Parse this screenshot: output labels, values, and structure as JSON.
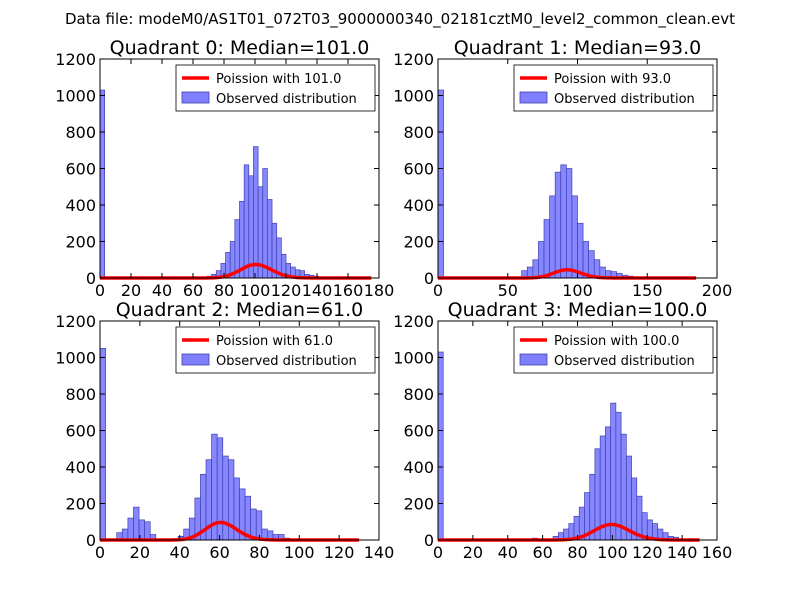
{
  "figure_title": "Data file: modeM0/AS1T01_072T03_9000000340_02181cztM0_level2_common_clean.evt",
  "colors": {
    "histogram_fill": "#8080ff",
    "histogram_edge": "#4040b0",
    "poisson_line": "#ff0000"
  },
  "chart_data": [
    {
      "type": "bar",
      "title": "Quadrant 0: Median=101.0",
      "xlim": [
        0,
        180
      ],
      "ylim": [
        0,
        1200
      ],
      "xticks": [
        0,
        20,
        40,
        60,
        80,
        100,
        120,
        140,
        160,
        180
      ],
      "xtick_labels": [
        "0",
        "20",
        "40",
        "60",
        "80",
        "100",
        "120",
        "140",
        "160",
        "180"
      ],
      "yticks": [
        0,
        200,
        400,
        600,
        800,
        1000,
        1200
      ],
      "legend": [
        "Poission with 101.0",
        "Observed distribution"
      ],
      "legend_position": "top-right",
      "series": [
        {
          "name": "Observed distribution",
          "kind": "histogram",
          "bin_width": 3,
          "x": [
            0,
            66,
            69,
            72,
            75,
            78,
            81,
            84,
            87,
            90,
            93,
            96,
            99,
            102,
            105,
            108,
            111,
            114,
            117,
            120,
            123,
            126,
            129,
            132,
            135,
            138,
            141
          ],
          "values": [
            1030,
            5,
            10,
            20,
            40,
            80,
            140,
            200,
            320,
            420,
            620,
            560,
            720,
            500,
            600,
            430,
            300,
            220,
            130,
            80,
            60,
            45,
            40,
            20,
            15,
            10,
            5
          ]
        },
        {
          "name": "Poission with 101.0",
          "kind": "line",
          "mean": 101.0,
          "x_range": [
            0,
            175
          ]
        }
      ]
    },
    {
      "type": "bar",
      "title": "Quadrant 1: Median=93.0",
      "xlim": [
        0,
        200
      ],
      "ylim": [
        0,
        1200
      ],
      "xticks": [
        0,
        50,
        100,
        150,
        200
      ],
      "xtick_labels": [
        "0",
        "50",
        "100",
        "150",
        "200"
      ],
      "yticks": [
        0,
        200,
        400,
        600,
        800,
        1000,
        1200
      ],
      "legend": [
        "Poission with 93.0",
        "Observed distribution"
      ],
      "legend_position": "top-right",
      "series": [
        {
          "name": "Observed distribution",
          "kind": "histogram",
          "bin_width": 4,
          "x": [
            0,
            60,
            64,
            68,
            72,
            76,
            80,
            84,
            88,
            92,
            96,
            100,
            104,
            108,
            112,
            116,
            120,
            124,
            128,
            132,
            136
          ],
          "values": [
            1030,
            40,
            60,
            100,
            200,
            320,
            450,
            580,
            620,
            600,
            450,
            300,
            200,
            150,
            100,
            60,
            40,
            35,
            25,
            15,
            10
          ]
        },
        {
          "name": "Poission with 93.0",
          "kind": "line",
          "mean": 93.0,
          "x_range": [
            0,
            185
          ]
        }
      ]
    },
    {
      "type": "bar",
      "title": "Quadrant 2: Median=61.0",
      "xlim": [
        0,
        140
      ],
      "ylim": [
        0,
        1200
      ],
      "xticks": [
        0,
        20,
        40,
        60,
        80,
        100,
        120,
        140
      ],
      "xtick_labels": [
        "0",
        "20",
        "40",
        "60",
        "80",
        "100",
        "120",
        "140"
      ],
      "yticks": [
        0,
        200,
        400,
        600,
        800,
        1000,
        1200
      ],
      "legend": [
        "Poission with 61.0",
        "Observed distribution"
      ],
      "legend_position": "top-right",
      "series": [
        {
          "name": "Observed distribution",
          "kind": "histogram",
          "bin_width": 2.8,
          "x": [
            0,
            8.4,
            11.2,
            14,
            16.8,
            19.6,
            22.4,
            25.2,
            39.2,
            42,
            44.8,
            47.6,
            50.4,
            53.2,
            56,
            58.8,
            61.6,
            64.4,
            67.2,
            70,
            72.8,
            75.6,
            78.4,
            81.2,
            84,
            86.8,
            89.6,
            92.4
          ],
          "values": [
            1050,
            40,
            60,
            120,
            180,
            110,
            100,
            30,
            20,
            60,
            120,
            230,
            360,
            440,
            580,
            560,
            460,
            440,
            340,
            280,
            240,
            170,
            160,
            60,
            50,
            30,
            30,
            10
          ]
        },
        {
          "name": "Poission with 61.0",
          "kind": "line",
          "mean": 61.0,
          "x_range": [
            0,
            130
          ]
        }
      ]
    },
    {
      "type": "bar",
      "title": "Quadrant 3: Median=100.0",
      "xlim": [
        0,
        160
      ],
      "ylim": [
        0,
        1200
      ],
      "xticks": [
        0,
        20,
        40,
        60,
        80,
        100,
        120,
        140,
        160
      ],
      "xtick_labels": [
        "0",
        "20",
        "40",
        "60",
        "80",
        "100",
        "120",
        "140",
        "160"
      ],
      "yticks": [
        0,
        200,
        400,
        600,
        800,
        1000,
        1200
      ],
      "legend": [
        "Poission with 100.0",
        "Observed distribution"
      ],
      "legend_position": "top-right",
      "series": [
        {
          "name": "Observed distribution",
          "kind": "histogram",
          "bin_width": 3,
          "x": [
            0,
            54,
            66,
            69,
            72,
            75,
            78,
            81,
            84,
            87,
            90,
            93,
            96,
            99,
            102,
            105,
            108,
            111,
            114,
            117,
            120,
            123,
            126,
            129,
            132,
            135,
            138
          ],
          "values": [
            1030,
            10,
            20,
            40,
            60,
            90,
            130,
            180,
            260,
            360,
            500,
            570,
            620,
            750,
            700,
            580,
            460,
            340,
            240,
            150,
            110,
            90,
            60,
            40,
            20,
            15,
            5
          ]
        },
        {
          "name": "Poission with 100.0",
          "kind": "line",
          "mean": 100.0,
          "x_range": [
            0,
            150
          ]
        }
      ]
    }
  ]
}
